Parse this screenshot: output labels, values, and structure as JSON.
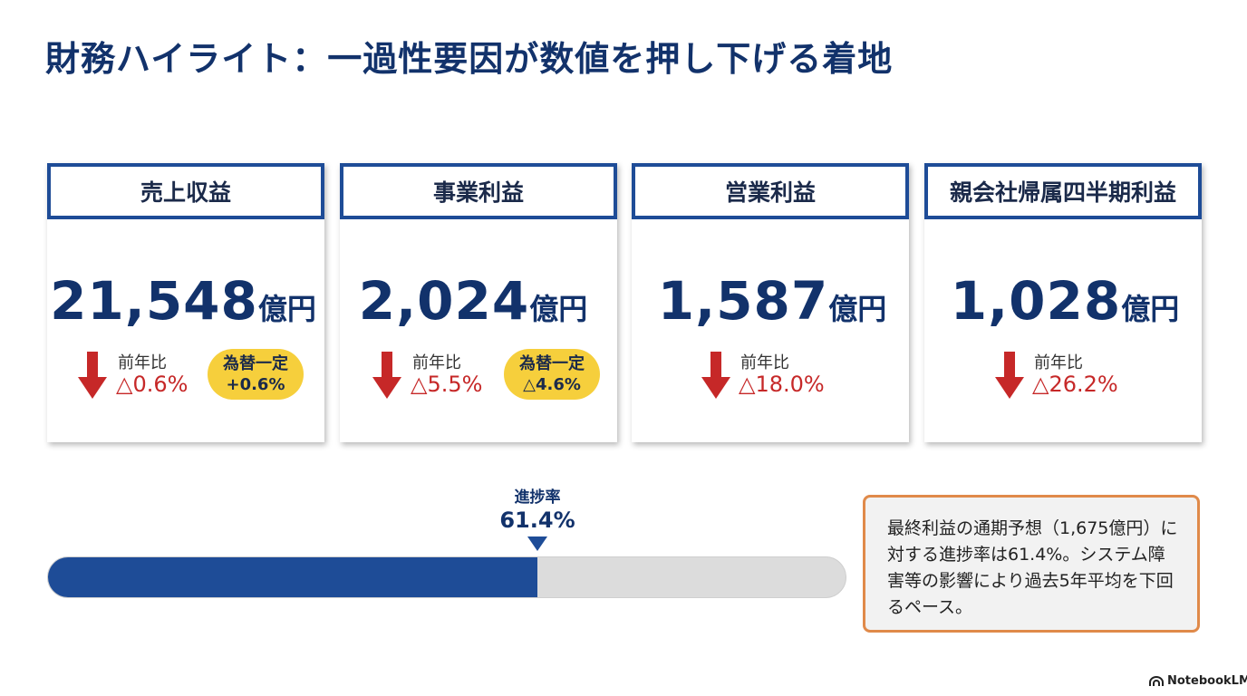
{
  "title": "財務ハイライト：一過性要因が数値を押し下げる着地",
  "colors": {
    "navy": "#12326b",
    "accent_blue": "#1e4c97",
    "down_red": "#c62828",
    "pill_yellow": "#f6cf3c",
    "note_border": "#e08a4a"
  },
  "cards": [
    {
      "header": "売上収益",
      "value": "21,548",
      "unit": "億円",
      "yoy_label": "前年比",
      "yoy_value": "△0.6%",
      "trend_icon": "down-arrow-icon",
      "fx_label": "為替一定",
      "fx_value": "+0.6%"
    },
    {
      "header": "事業利益",
      "value": "2,024",
      "unit": "億円",
      "yoy_label": "前年比",
      "yoy_value": "△5.5%",
      "trend_icon": "down-arrow-icon",
      "fx_label": "為替一定",
      "fx_value": "△4.6%"
    },
    {
      "header": "営業利益",
      "value": "1,587",
      "unit": "億円",
      "yoy_label": "前年比",
      "yoy_value": "△18.0%",
      "trend_icon": "down-arrow-icon"
    },
    {
      "header": "親会社帰属四半期利益",
      "value": "1,028",
      "unit": "億円",
      "yoy_label": "前年比",
      "yoy_value": "△26.2%",
      "trend_icon": "down-arrow-icon"
    }
  ],
  "progress": {
    "label": "進捗率",
    "value_text": "61.4%",
    "fraction": 0.614
  },
  "note": {
    "text": "最終利益の通期予想（1,675億円）に対する進捗率は61.4%。システム障害等の影響により過去5年平均を下回るペース。"
  },
  "brand": {
    "name": "NotebookLM",
    "icon": "notebooklm-logo-icon"
  }
}
